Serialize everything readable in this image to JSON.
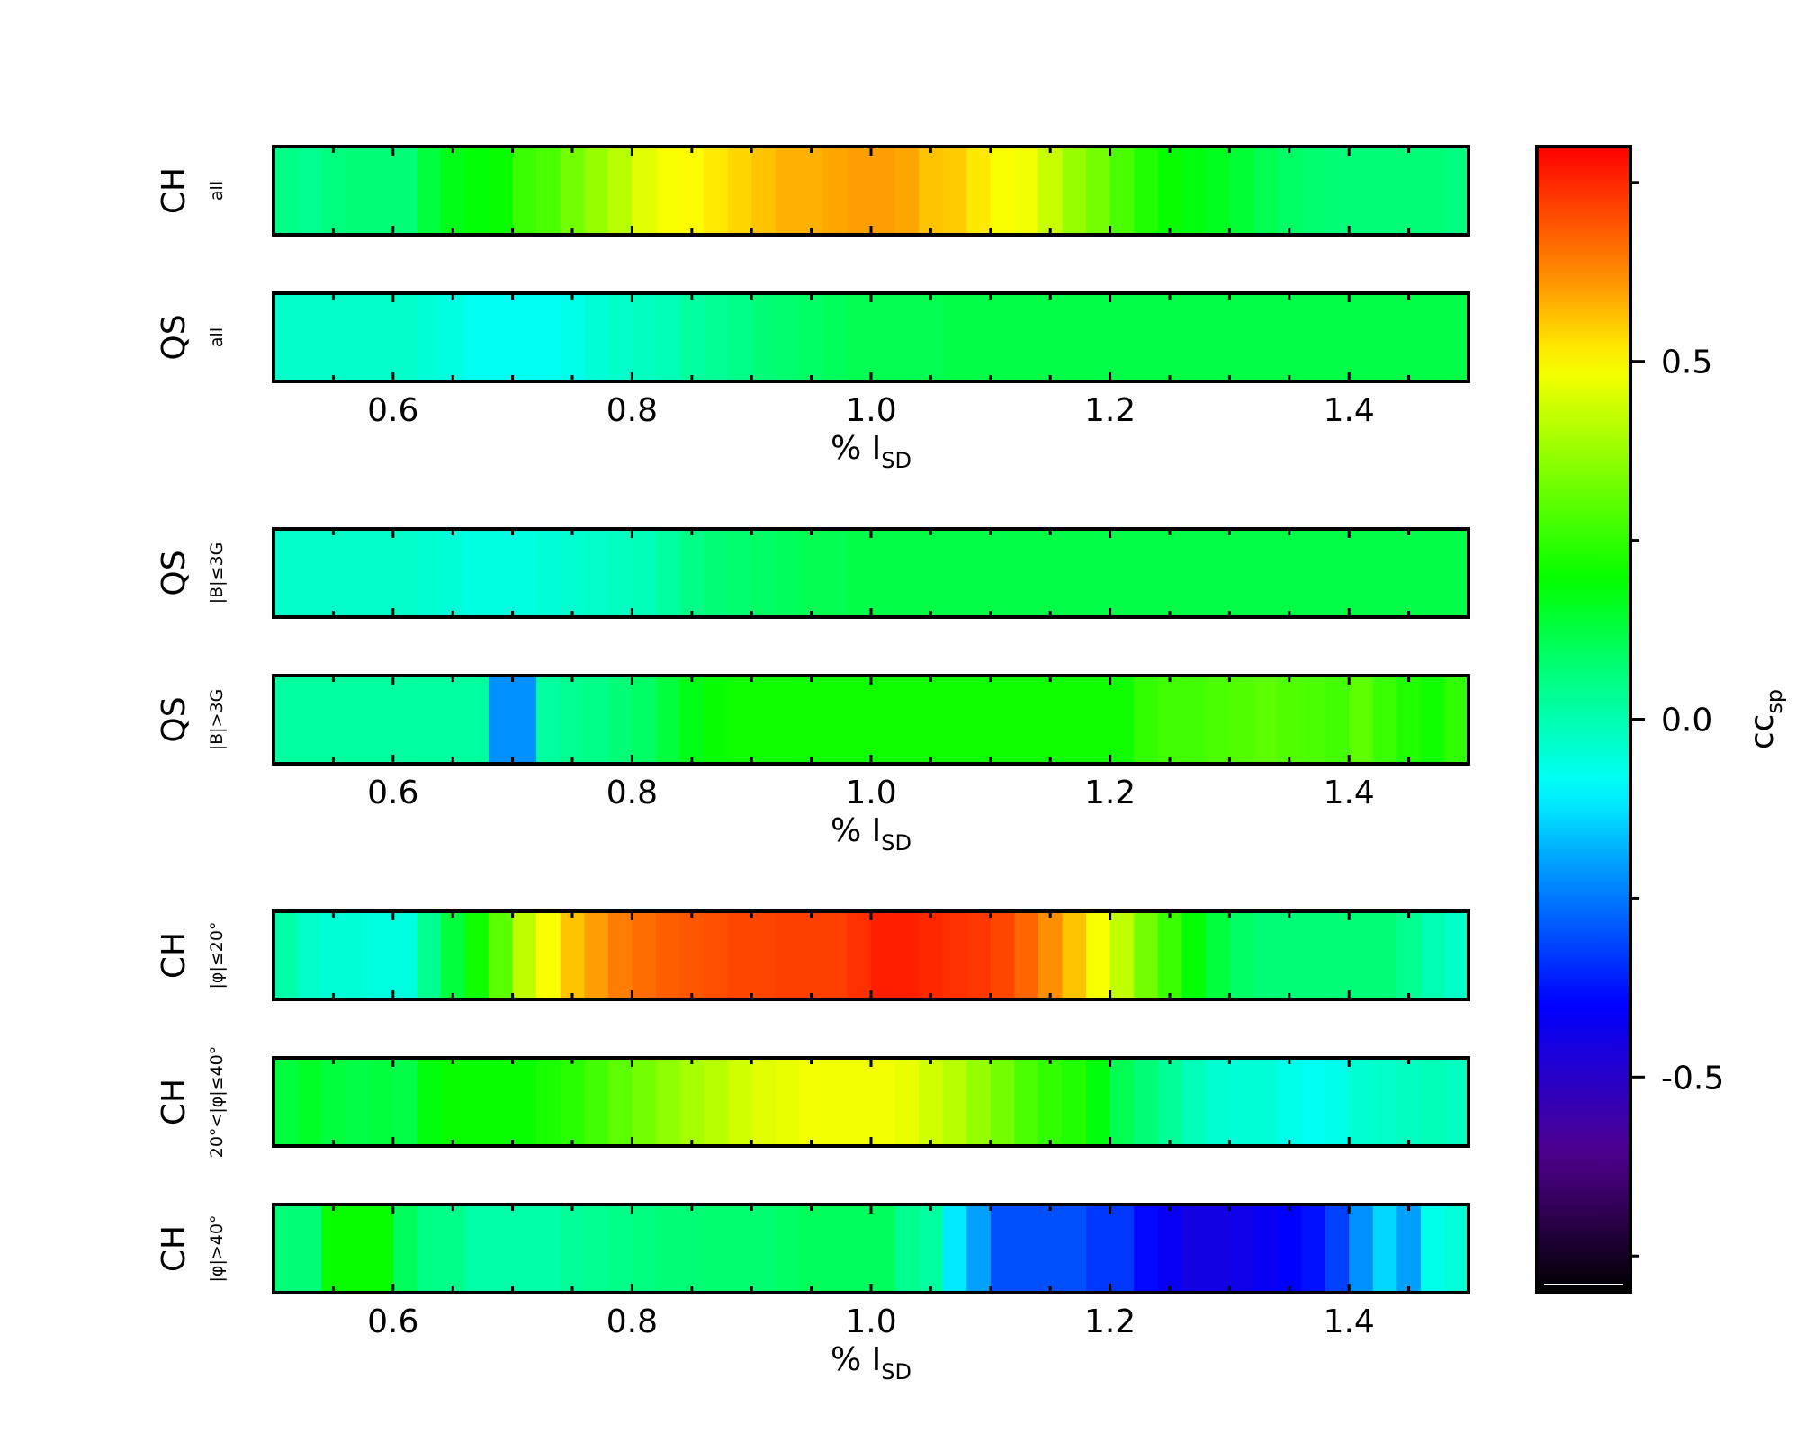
{
  "chart_data": {
    "type": "heatmap",
    "x_start": 0.5,
    "x_step": 0.02,
    "xlim": [
      0.5,
      1.5
    ],
    "x_ticks": [
      0.6,
      0.8,
      1.0,
      1.2,
      1.4
    ],
    "x_tick_labels": [
      "0.6",
      "0.8",
      "1.0",
      "1.2",
      "1.4"
    ],
    "xlabel": {
      "main": "% I",
      "sub": "SD"
    },
    "colorbar": {
      "min": -0.8,
      "max": 0.8,
      "ticks": [
        -0.5,
        0.0,
        0.5
      ],
      "tick_labels": [
        "-0.5",
        "0.0",
        "0.5"
      ],
      "minor_ticks": [
        -0.75,
        -0.25,
        0.25,
        0.75
      ],
      "label": {
        "main": "cc",
        "sub": "sp"
      },
      "colormap": "rainbow-black-to-red"
    },
    "groups": [
      {
        "rows": [
          {
            "main": "CH",
            "sub": "all",
            "values": [
              0.05,
              0.04,
              0.06,
              0.07,
              0.07,
              0.07,
              0.13,
              0.17,
              0.19,
              0.2,
              0.26,
              0.28,
              0.33,
              0.37,
              0.41,
              0.46,
              0.49,
              0.5,
              0.52,
              0.54,
              0.56,
              0.58,
              0.58,
              0.59,
              0.6,
              0.6,
              0.59,
              0.56,
              0.55,
              0.52,
              0.49,
              0.48,
              0.43,
              0.37,
              0.33,
              0.28,
              0.23,
              0.2,
              0.18,
              0.16,
              0.14,
              0.11,
              0.09,
              0.08,
              0.07,
              0.07,
              0.07,
              0.07,
              0.07,
              0.06,
              0.05,
              0.06,
              0.07
            ]
          },
          {
            "main": "QS",
            "sub": "all",
            "values": [
              -0.03,
              -0.03,
              -0.03,
              -0.03,
              -0.03,
              -0.03,
              -0.05,
              -0.06,
              -0.08,
              -0.08,
              -0.08,
              -0.08,
              -0.07,
              -0.05,
              -0.03,
              -0.02,
              -0.01,
              0.02,
              0.03,
              0.05,
              0.07,
              0.08,
              0.09,
              0.1,
              0.11,
              0.11,
              0.11,
              0.11,
              0.12,
              0.12,
              0.12,
              0.12,
              0.12,
              0.12,
              0.12,
              0.12,
              0.12,
              0.12,
              0.12,
              0.12,
              0.12,
              0.12,
              0.12,
              0.12,
              0.12,
              0.12,
              0.12,
              0.12,
              0.12,
              0.12,
              0.12
            ]
          }
        ]
      },
      {
        "rows": [
          {
            "main": "QS",
            "sub": "|B|≤3G",
            "values": [
              -0.03,
              -0.03,
              -0.03,
              -0.03,
              -0.03,
              -0.03,
              -0.04,
              -0.05,
              -0.06,
              -0.06,
              -0.06,
              -0.05,
              -0.04,
              -0.03,
              -0.02,
              -0.01,
              0.02,
              0.05,
              0.07,
              0.08,
              0.09,
              0.1,
              0.11,
              0.11,
              0.12,
              0.12,
              0.12,
              0.12,
              0.12,
              0.12,
              0.12,
              0.12,
              0.12,
              0.12,
              0.12,
              0.12,
              0.12,
              0.12,
              0.12,
              0.12,
              0.12,
              0.12,
              0.12,
              0.12,
              0.12,
              0.12,
              0.12,
              0.12,
              0.12,
              0.12
            ]
          },
          {
            "main": "QS",
            "sub": "|B|>3G",
            "values": [
              0.02,
              0.02,
              0.02,
              0.02,
              0.02,
              0.02,
              0.02,
              0.02,
              0.02,
              -0.22,
              -0.22,
              0.02,
              0.04,
              0.05,
              0.07,
              0.09,
              0.13,
              0.17,
              0.2,
              0.21,
              0.21,
              0.21,
              0.21,
              0.21,
              0.21,
              0.21,
              0.21,
              0.21,
              0.21,
              0.21,
              0.21,
              0.21,
              0.21,
              0.21,
              0.21,
              0.21,
              0.25,
              0.27,
              0.27,
              0.28,
              0.29,
              0.3,
              0.29,
              0.28,
              0.27,
              0.3,
              0.26,
              0.23,
              0.21,
              0.25,
              0.33
            ]
          }
        ]
      },
      {
        "rows": [
          {
            "main": "CH",
            "sub": "|φ|≤20°",
            "values": [
              0.01,
              -0.03,
              -0.05,
              -0.05,
              -0.06,
              -0.06,
              0.04,
              0.13,
              0.21,
              0.3,
              0.42,
              0.49,
              0.56,
              0.6,
              0.64,
              0.66,
              0.68,
              0.69,
              0.7,
              0.71,
              0.71,
              0.72,
              0.72,
              0.72,
              0.74,
              0.76,
              0.76,
              0.75,
              0.74,
              0.73,
              0.71,
              0.67,
              0.62,
              0.56,
              0.49,
              0.42,
              0.33,
              0.26,
              0.19,
              0.13,
              0.09,
              0.07,
              0.07,
              0.07,
              0.07,
              0.07,
              0.07,
              0.04,
              0.0,
              -0.03,
              0.02
            ]
          },
          {
            "main": "CH",
            "sub": "20°<|φ|≤40°",
            "values": [
              0.13,
              0.15,
              0.13,
              0.12,
              0.13,
              0.12,
              0.18,
              0.2,
              0.2,
              0.2,
              0.2,
              0.22,
              0.24,
              0.27,
              0.3,
              0.33,
              0.36,
              0.39,
              0.41,
              0.44,
              0.46,
              0.47,
              0.48,
              0.48,
              0.48,
              0.48,
              0.47,
              0.44,
              0.41,
              0.37,
              0.33,
              0.28,
              0.25,
              0.23,
              0.18,
              0.11,
              0.07,
              0.03,
              -0.01,
              -0.04,
              -0.05,
              -0.05,
              -0.07,
              -0.08,
              -0.07,
              -0.04,
              -0.03,
              -0.02,
              -0.01,
              -0.02,
              0.0
            ]
          },
          {
            "main": "CH",
            "sub": "|φ|>40°",
            "values": [
              0.07,
              0.07,
              0.2,
              0.2,
              0.2,
              0.1,
              0.05,
              0.05,
              0.01,
              0.01,
              0.01,
              0.01,
              0.03,
              0.04,
              0.05,
              0.06,
              0.07,
              0.07,
              0.08,
              0.08,
              0.08,
              0.09,
              0.1,
              0.1,
              0.1,
              0.1,
              0.04,
              0.02,
              -0.12,
              -0.2,
              -0.3,
              -0.3,
              -0.3,
              -0.3,
              -0.33,
              -0.33,
              -0.39,
              -0.42,
              -0.45,
              -0.45,
              -0.44,
              -0.42,
              -0.4,
              -0.38,
              -0.32,
              -0.22,
              -0.14,
              -0.2,
              -0.07,
              -0.05,
              -0.14,
              -0.02,
              -0.02,
              0.12
            ]
          }
        ]
      }
    ]
  }
}
